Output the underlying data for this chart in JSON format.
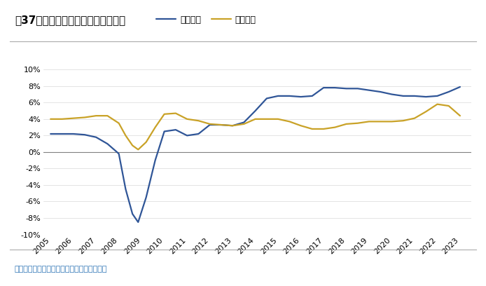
{
  "title": "图37：蒙牛与伊利调整后净利率对比",
  "source_text": "数据来源：公司财报，广发证券发展研究中心",
  "legend_items": [
    "伊利股份",
    "蒙牛乳业"
  ],
  "yili_color": "#2F5597",
  "mengniu_color": "#C9A227",
  "background_color": "#FFFFFF",
  "ylim": [
    -0.1,
    0.115
  ],
  "yticks": [
    -0.1,
    -0.08,
    -0.06,
    -0.04,
    -0.02,
    0.0,
    0.02,
    0.04,
    0.06,
    0.08,
    0.1
  ],
  "years": [
    2005,
    2005.5,
    2006,
    2006.5,
    2007,
    2007.5,
    2008,
    2008.3,
    2008.6,
    2008.85,
    2009.2,
    2009.6,
    2010,
    2010.5,
    2011,
    2011.5,
    2012,
    2012.5,
    2013,
    2013.5,
    2014,
    2014.5,
    2015,
    2015.5,
    2016,
    2016.5,
    2017,
    2017.5,
    2018,
    2018.5,
    2019,
    2019.5,
    2020,
    2020.5,
    2021,
    2021.5,
    2022,
    2022.5,
    2023
  ],
  "yili_values": [
    0.022,
    0.022,
    0.022,
    0.021,
    0.018,
    0.01,
    -0.002,
    -0.045,
    -0.075,
    -0.085,
    -0.055,
    -0.01,
    0.025,
    0.027,
    0.02,
    0.022,
    0.033,
    0.033,
    0.032,
    0.036,
    0.05,
    0.065,
    0.068,
    0.068,
    0.067,
    0.068,
    0.078,
    0.078,
    0.077,
    0.077,
    0.075,
    0.073,
    0.07,
    0.068,
    0.068,
    0.067,
    0.068,
    0.073,
    0.079
  ],
  "mengniu_values": [
    0.04,
    0.04,
    0.041,
    0.042,
    0.044,
    0.044,
    0.035,
    0.02,
    0.008,
    0.003,
    0.012,
    0.03,
    0.046,
    0.047,
    0.04,
    0.038,
    0.034,
    0.033,
    0.032,
    0.034,
    0.04,
    0.04,
    0.04,
    0.037,
    0.032,
    0.028,
    0.028,
    0.03,
    0.034,
    0.035,
    0.037,
    0.037,
    0.037,
    0.038,
    0.041,
    0.049,
    0.058,
    0.056,
    0.044
  ],
  "xtick_years": [
    2005,
    2006,
    2007,
    2008,
    2009,
    2010,
    2011,
    2012,
    2013,
    2014,
    2015,
    2016,
    2017,
    2018,
    2019,
    2020,
    2021,
    2022,
    2023
  ],
  "title_color": "#000000",
  "source_color": "#2E75B6",
  "grid_color": "#D9D9D9",
  "zero_line_color": "#808080"
}
